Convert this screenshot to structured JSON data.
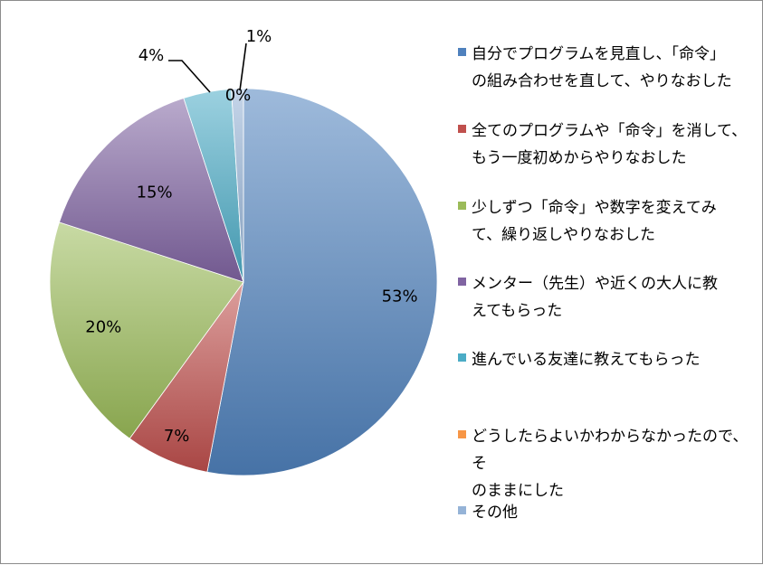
{
  "chart_data": {
    "type": "pie",
    "title": "",
    "categories": [
      "自分でプログラムを見直し、「命令」の組み合わせを直して、やりなおした",
      "全てのプログラムや「命令」を消して、もう一度初めからやりなおした",
      "少しずつ「命令」や数字を変えてみて、繰り返しやりなおした",
      "メンター（先生）や近くの大人に教えてもらった",
      "進んでいる友達に教えてもらった",
      "どうしたらよいかわからなかったので、そのままにした",
      "その他"
    ],
    "values": [
      53,
      7,
      20,
      15,
      4,
      0,
      1
    ],
    "labels": [
      "53%",
      "7%",
      "20%",
      "15%",
      "4%",
      "0%",
      "1%"
    ],
    "colors": [
      "#4f81bd",
      "#c0504d",
      "#9bbb59",
      "#8064a2",
      "#4bacc6",
      "#f79646",
      "#95b3d7"
    ],
    "legend_position": "right"
  },
  "legend_lines": [
    [
      "自分でプログラムを見直し、「命令」",
      "の組み合わせを直して、やりなおした"
    ],
    [
      "全てのプログラムや「命令」を消して、",
      "もう一度初めからやりなおした"
    ],
    [
      "少しずつ「命令」や数字を変えてみ",
      "て、繰り返しやりなおした"
    ],
    [
      "メンター（先生）や近くの大人に教",
      "えてもらった"
    ],
    [
      "進んでいる友達に教えてもらった"
    ],
    [
      "どうしたらよいかわからなかったので、そ",
      "のままにした"
    ],
    [
      "その他"
    ]
  ]
}
